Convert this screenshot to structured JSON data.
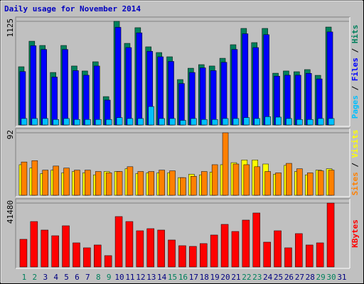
{
  "chart_data": [
    {
      "type": "bar",
      "title": "Daily usage for November 2014",
      "categories": [
        "1",
        "2",
        "3",
        "4",
        "5",
        "6",
        "7",
        "8",
        "9",
        "10",
        "11",
        "12",
        "13",
        "14",
        "15",
        "16",
        "17",
        "18",
        "19",
        "20",
        "21",
        "22",
        "23",
        "24",
        "25",
        "26",
        "27",
        "28",
        "29",
        "30",
        "31"
      ],
      "category_colors": [
        "#00805C",
        "#00805C",
        "#000080",
        "#000080",
        "#000080",
        "#000080",
        "#000080",
        "#00805C",
        "#00805C",
        "#000080",
        "#000080",
        "#000080",
        "#000080",
        "#000080",
        "#00805C",
        "#00805C",
        "#000080",
        "#000080",
        "#000080",
        "#000080",
        "#000080",
        "#00805C",
        "#00805C",
        "#000080",
        "#000080",
        "#000080",
        "#000080",
        "#000080",
        "#00805C",
        "#00805C",
        "#000080"
      ],
      "legend_separator": " / ",
      "ylim": [
        0,
        1125
      ],
      "yticks": [
        1125
      ],
      "series": [
        {
          "name": "Pages",
          "color": "#00C0FF",
          "values": [
            70,
            70,
            70,
            60,
            70,
            60,
            60,
            60,
            60,
            80,
            70,
            70,
            200,
            70,
            70,
            50,
            70,
            60,
            60,
            70,
            70,
            80,
            70,
            90,
            85,
            70,
            60,
            60,
            70,
            70,
            null
          ]
        },
        {
          "name": "Files",
          "color": "#0000FF",
          "values": [
            580,
            860,
            820,
            520,
            820,
            590,
            540,
            640,
            270,
            1060,
            840,
            1000,
            800,
            740,
            690,
            450,
            570,
            620,
            590,
            680,
            820,
            990,
            840,
            980,
            530,
            540,
            540,
            560,
            500,
            1010,
            null
          ]
        },
        {
          "name": "Hits",
          "color": "#00805C",
          "values": [
            632,
            909,
            863,
            570,
            863,
            640,
            586,
            686,
            308,
            1125,
            886,
            1056,
            848,
            786,
            740,
            493,
            616,
            655,
            640,
            724,
            871,
            1048,
            894,
            1048,
            562,
            586,
            578,
            601,
            539,
            1063,
            null
          ]
        }
      ]
    },
    {
      "type": "bar",
      "legend_separator": " / ",
      "ylim": [
        0,
        92
      ],
      "yticks": [
        92
      ],
      "series": [
        {
          "name": "Sites",
          "color": "#FF8000",
          "values": [
            49,
            51,
            37,
            43,
            40,
            37,
            37,
            35,
            33,
            35,
            42,
            35,
            35,
            37,
            36,
            26,
            28,
            35,
            45,
            92,
            46,
            45,
            42,
            35,
            33,
            47,
            39,
            33,
            36,
            37,
            null
          ]
        },
        {
          "name": "Visits",
          "color": "#FFFF00",
          "values": [
            45,
            40,
            32,
            37,
            33,
            35,
            33,
            30,
            35,
            35,
            39,
            32,
            33,
            33,
            33,
            26,
            31,
            30,
            34,
            45,
            48,
            52,
            52,
            46,
            31,
            44,
            35,
            30,
            37,
            39,
            null
          ]
        }
      ]
    },
    {
      "type": "bar",
      "ylim": [
        0,
        41480
      ],
      "yticks": [
        41480
      ],
      "series": [
        {
          "name": "KBytes",
          "color": "#FF0000",
          "values": [
            17980,
            29500,
            23970,
            20280,
            26740,
            15670,
            12450,
            14290,
            7380,
            32730,
            29500,
            23510,
            24890,
            23970,
            17520,
            13830,
            13370,
            15210,
            20750,
            27660,
            23050,
            30430,
            35040,
            16130,
            23510,
            12450,
            21670,
            14290,
            15670,
            41480,
            null
          ]
        }
      ]
    }
  ]
}
